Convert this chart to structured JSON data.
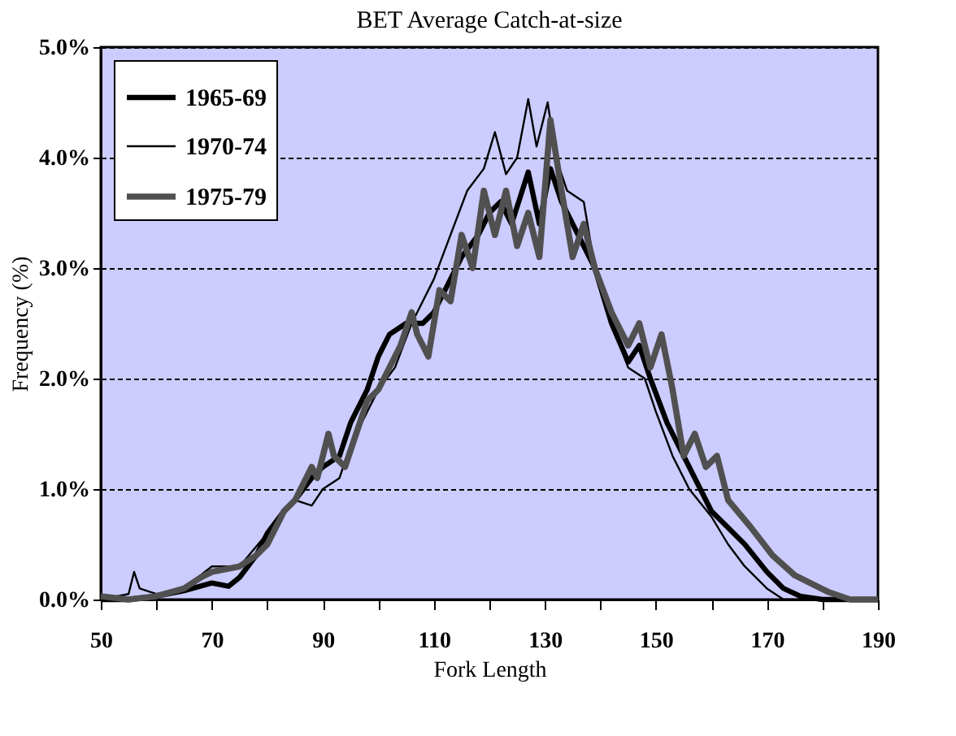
{
  "chart_data": {
    "type": "line",
    "title": "BET Average Catch-at-size",
    "xlabel": "Fork Length",
    "ylabel": "Frequency (%)",
    "xlim": [
      50,
      190
    ],
    "xticks": [
      50,
      {
        "value": 60,
        "label": null
      },
      70,
      {
        "value": 80,
        "label": null
      },
      90,
      {
        "value": 100,
        "label": null
      },
      110,
      {
        "value": 120,
        "label": null
      },
      130,
      {
        "value": 140,
        "label": null
      },
      150,
      {
        "value": 160,
        "label": null
      },
      170,
      {
        "value": 180,
        "label": null
      },
      190
    ],
    "ylim": [
      0,
      0.05
    ],
    "yticks": [
      {
        "value": 0,
        "label": "0.0%"
      },
      {
        "value": 0.01,
        "label": "1.0%"
      },
      {
        "value": 0.02,
        "label": "2.0%"
      },
      {
        "value": 0.03,
        "label": "3.0%"
      },
      {
        "value": 0.04,
        "label": "4.0%"
      },
      {
        "value": 0.05,
        "label": "5.0%"
      }
    ],
    "grid": "y",
    "legend": "top left",
    "marker": "none",
    "line_style": "solid",
    "series": [
      {
        "name": "1965-69",
        "color": "#000000",
        "x": [
          50,
          55,
          60,
          65,
          70,
          73,
          75,
          78,
          80,
          83,
          85,
          88,
          90,
          93,
          95,
          98,
          100,
          102,
          105,
          108,
          110,
          113,
          115,
          118,
          120,
          122,
          124,
          127,
          129,
          131,
          133,
          136,
          139,
          142,
          145,
          147,
          149,
          152,
          155,
          158,
          160,
          163,
          166,
          170,
          173,
          176,
          180,
          190
        ],
        "values": [
          0,
          0,
          0.0003,
          0.0008,
          0.0015,
          0.0012,
          0.002,
          0.004,
          0.006,
          0.008,
          0.009,
          0.011,
          0.012,
          0.013,
          0.016,
          0.019,
          0.022,
          0.024,
          0.025,
          0.025,
          0.026,
          0.029,
          0.031,
          0.033,
          0.035,
          0.036,
          0.034,
          0.0387,
          0.034,
          0.039,
          0.036,
          0.033,
          0.03,
          0.025,
          0.0215,
          0.023,
          0.02,
          0.016,
          0.013,
          0.01,
          0.008,
          0.0065,
          0.005,
          0.0025,
          0.001,
          0.0003,
          0,
          0
        ]
      },
      {
        "name": "1970-74",
        "color": "#000000",
        "x": [
          50,
          55,
          56,
          57,
          60,
          65,
          70,
          75,
          80,
          83,
          85,
          88,
          90,
          93,
          95,
          98,
          100,
          103,
          106,
          110,
          113,
          116,
          119,
          121,
          123,
          125,
          127,
          128.5,
          130.5,
          132,
          134,
          137,
          139,
          142,
          145,
          148,
          150,
          153,
          156,
          160,
          163,
          166,
          170,
          173,
          190
        ],
        "values": [
          0,
          0.0005,
          0.0025,
          0.001,
          0.0005,
          0.001,
          0.003,
          0.003,
          0.006,
          0.008,
          0.009,
          0.0085,
          0.01,
          0.011,
          0.014,
          0.017,
          0.019,
          0.021,
          0.025,
          0.029,
          0.033,
          0.037,
          0.039,
          0.0423,
          0.0385,
          0.04,
          0.0453,
          0.041,
          0.045,
          0.04,
          0.037,
          0.036,
          0.03,
          0.025,
          0.021,
          0.02,
          0.017,
          0.013,
          0.01,
          0.0075,
          0.005,
          0.003,
          0.001,
          0,
          0
        ]
      },
      {
        "name": "1975-79",
        "color": "#505050",
        "x": [
          50,
          55,
          60,
          65,
          68,
          70,
          75,
          78,
          80,
          83,
          85,
          88,
          89,
          91,
          92,
          94,
          96,
          98,
          100,
          102,
          104,
          106,
          107,
          109,
          111,
          113,
          115,
          117,
          119,
          121,
          123,
          125,
          127,
          129,
          131,
          133,
          135,
          137,
          139,
          142,
          145,
          147,
          149,
          151,
          153,
          155,
          157,
          159,
          161,
          163,
          167,
          171,
          175,
          181,
          185,
          190
        ],
        "values": [
          0.0003,
          0,
          0.0003,
          0.001,
          0.002,
          0.0025,
          0.003,
          0.004,
          0.005,
          0.008,
          0.009,
          0.012,
          0.011,
          0.015,
          0.013,
          0.012,
          0.015,
          0.018,
          0.019,
          0.021,
          0.023,
          0.026,
          0.024,
          0.022,
          0.028,
          0.027,
          0.033,
          0.03,
          0.037,
          0.033,
          0.037,
          0.032,
          0.035,
          0.031,
          0.0434,
          0.037,
          0.031,
          0.034,
          0.03,
          0.026,
          0.023,
          0.025,
          0.021,
          0.024,
          0.019,
          0.013,
          0.015,
          0.012,
          0.013,
          0.009,
          0.0066,
          0.004,
          0.0022,
          0.0007,
          0,
          0
        ]
      }
    ]
  }
}
